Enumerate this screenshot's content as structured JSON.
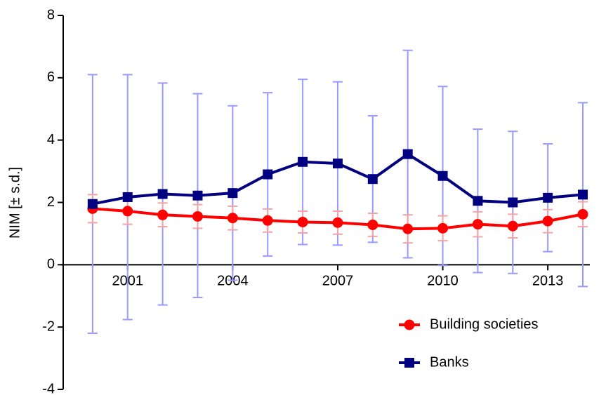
{
  "chart_data": {
    "type": "line",
    "y_label": "NIM [± s.d.]",
    "x": [
      2000,
      2001,
      2002,
      2003,
      2004,
      2005,
      2006,
      2007,
      2008,
      2009,
      2010,
      2011,
      2012,
      2013,
      2014
    ],
    "xlim": [
      1999.1,
      2014.2
    ],
    "xticks": [
      2001,
      2004,
      2007,
      2010,
      2013
    ],
    "ylim": [
      -4,
      8
    ],
    "yticks": [
      -4,
      -2,
      0,
      2,
      4,
      6,
      8
    ],
    "legend": "lower-right",
    "series": [
      {
        "name": "Building societies",
        "color": "#ff0000",
        "error_color": "#f4a4a4",
        "marker": "circle",
        "values": [
          1.8,
          1.72,
          1.6,
          1.55,
          1.5,
          1.42,
          1.37,
          1.35,
          1.28,
          1.15,
          1.17,
          1.3,
          1.24,
          1.4,
          1.62
        ],
        "errors": [
          0.45,
          0.42,
          0.38,
          0.38,
          0.38,
          0.37,
          0.35,
          0.37,
          0.37,
          0.45,
          0.4,
          0.4,
          0.38,
          0.37,
          0.4
        ]
      },
      {
        "name": "Banks",
        "color": "#000080",
        "error_color": "#9999ff",
        "marker": "square",
        "values": [
          1.95,
          2.17,
          2.27,
          2.22,
          2.3,
          2.9,
          3.3,
          3.25,
          2.75,
          3.55,
          2.85,
          2.05,
          2.0,
          2.15,
          2.25
        ],
        "errors": [
          4.15,
          3.93,
          3.56,
          3.27,
          2.8,
          2.62,
          2.65,
          2.62,
          2.03,
          3.33,
          2.87,
          2.3,
          2.28,
          1.73,
          2.95
        ]
      }
    ]
  }
}
